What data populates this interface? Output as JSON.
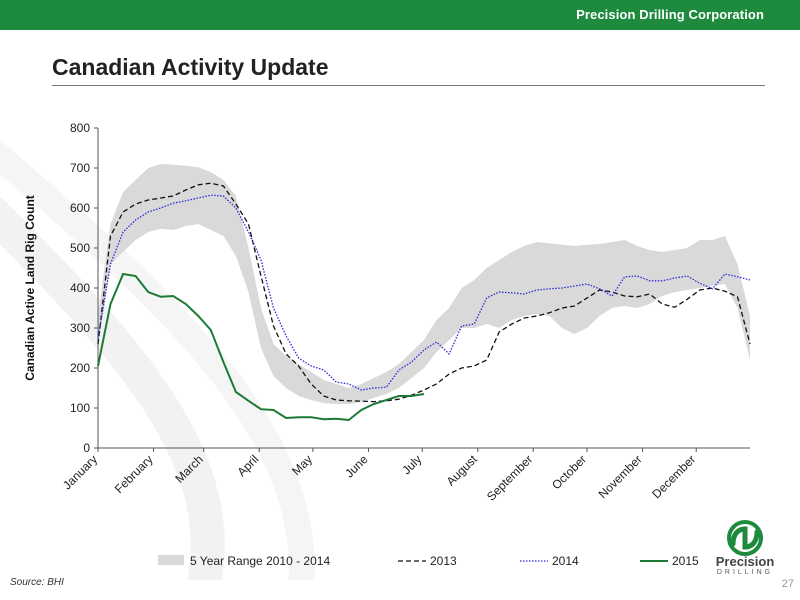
{
  "header": {
    "company": "Precision Drilling Corporation"
  },
  "page_title": "Canadian Activity Update",
  "footer": {
    "source": "Source: BHI",
    "page_number": "27"
  },
  "logo": {
    "wordmark": "Precision",
    "subword": "DRILLING"
  },
  "colors": {
    "brand": "#1d8a3d",
    "range_fill": "#d9d9d9",
    "s2013": "#111111",
    "s2014": "#2b2bd8",
    "s2015": "#1d7a34"
  },
  "chart_data": {
    "type": "line",
    "title": "",
    "xlabel": "",
    "ylabel": "Canadian Active Land Rig Count",
    "ylim": [
      0,
      800
    ],
    "yticks": [
      0,
      100,
      200,
      300,
      400,
      500,
      600,
      700,
      800
    ],
    "grid": false,
    "legend_position": "bottom",
    "x_week_range": [
      1,
      53
    ],
    "month_labels": [
      "January",
      "February",
      "March",
      "April",
      "May",
      "June",
      "July",
      "August",
      "September",
      "October",
      "November",
      "December"
    ],
    "month_start_weeks": [
      1,
      5.43,
      9.43,
      13.86,
      18.14,
      22.57,
      26.86,
      31.29,
      35.71,
      40,
      44.43,
      48.71
    ],
    "series": [
      {
        "name": "5 Year Range 2010 - 2014",
        "type": "range",
        "upper": [
          330,
          560,
          640,
          670,
          700,
          710,
          708,
          706,
          702,
          690,
          670,
          630,
          500,
          350,
          260,
          230,
          210,
          190,
          170,
          160,
          150,
          160,
          175,
          190,
          210,
          240,
          270,
          320,
          350,
          400,
          420,
          450,
          470,
          490,
          505,
          515,
          512,
          508,
          505,
          508,
          510,
          515,
          520,
          505,
          495,
          490,
          495,
          500,
          520,
          520,
          530,
          460,
          330
        ],
        "lower": [
          250,
          460,
          490,
          520,
          540,
          548,
          545,
          555,
          560,
          545,
          530,
          480,
          390,
          250,
          180,
          150,
          130,
          120,
          112,
          110,
          110,
          115,
          125,
          135,
          150,
          175,
          200,
          240,
          270,
          300,
          300,
          310,
          300,
          320,
          330,
          335,
          330,
          300,
          285,
          300,
          330,
          350,
          355,
          350,
          360,
          380,
          390,
          395,
          400,
          405,
          410,
          350,
          220
        ]
      },
      {
        "name": "2013",
        "type": "dashed",
        "values": [
          260,
          530,
          590,
          610,
          620,
          625,
          630,
          645,
          658,
          662,
          655,
          610,
          560,
          430,
          305,
          235,
          205,
          160,
          130,
          120,
          118,
          117,
          116,
          118,
          122,
          132,
          145,
          160,
          185,
          200,
          205,
          220,
          290,
          310,
          325,
          330,
          338,
          350,
          355,
          375,
          395,
          390,
          380,
          378,
          385,
          360,
          352,
          372,
          395,
          400,
          392,
          378,
          260
        ]
      },
      {
        "name": "2014",
        "type": "dotted",
        "values": [
          275,
          460,
          540,
          570,
          590,
          600,
          612,
          618,
          625,
          632,
          630,
          600,
          540,
          470,
          350,
          280,
          225,
          205,
          195,
          165,
          160,
          145,
          150,
          152,
          195,
          215,
          245,
          265,
          235,
          305,
          310,
          375,
          390,
          388,
          385,
          395,
          398,
          400,
          405,
          410,
          398,
          380,
          428,
          430,
          418,
          418,
          425,
          430,
          412,
          398,
          435,
          428,
          420
        ]
      },
      {
        "name": "2015",
        "type": "solid",
        "values": [
          205,
          360,
          435,
          430,
          390,
          378,
          380,
          360,
          330,
          295,
          215,
          140,
          118,
          97,
          95,
          75,
          77,
          77,
          72,
          73,
          70,
          95,
          110,
          120,
          130,
          130,
          135
        ]
      }
    ]
  }
}
